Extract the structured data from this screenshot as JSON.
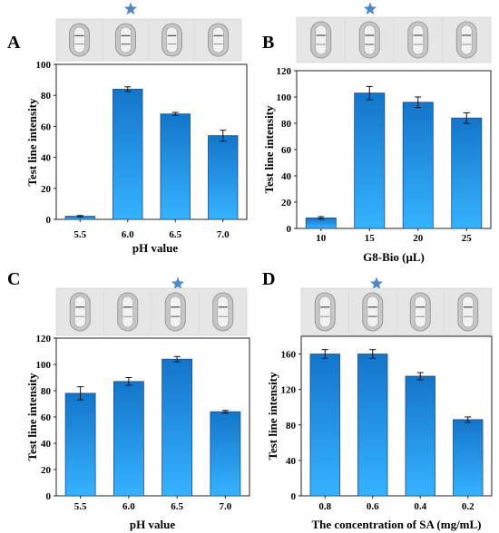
{
  "colors": {
    "bar_top": "#1475c9",
    "bar_bottom": "#35b3ff",
    "star": "#4f86c6",
    "strip_bg": "#e6e6e6"
  },
  "icons": {
    "highlight_marker": "star-icon",
    "test_strip": "test-strip-icon"
  },
  "chart_data": [
    {
      "panel": "A",
      "type": "bar",
      "categories": [
        "5.5",
        "6.0",
        "6.5",
        "7.0"
      ],
      "values": [
        2,
        84,
        68,
        54
      ],
      "errors": [
        0.5,
        1.5,
        1.0,
        3.5
      ],
      "xlabel": "pH value",
      "ylabel": "Test line intensity",
      "ylim": [
        0,
        100
      ],
      "yticks": [
        0,
        20,
        40,
        60,
        80,
        100
      ],
      "highlighted_category": "6.0",
      "strip_count": 4,
      "grid": false
    },
    {
      "panel": "B",
      "type": "bar",
      "categories": [
        "10",
        "15",
        "20",
        "25"
      ],
      "values": [
        8,
        103,
        96,
        84
      ],
      "errors": [
        1,
        5,
        4,
        4
      ],
      "xlabel": "G8-Bio (μL)",
      "ylabel": "Test line intensity",
      "ylim": [
        0,
        120
      ],
      "yticks": [
        0,
        20,
        40,
        60,
        80,
        100,
        120
      ],
      "highlighted_category": "15",
      "strip_count": 4,
      "grid": false
    },
    {
      "panel": "C",
      "type": "bar",
      "categories": [
        "5.5",
        "6.0",
        "6.5",
        "7.0"
      ],
      "values": [
        78,
        87,
        104,
        64
      ],
      "errors": [
        5,
        3,
        2,
        1
      ],
      "xlabel": "pH value",
      "ylabel": "Test line intensity",
      "ylim": [
        0,
        120
      ],
      "yticks": [
        0,
        20,
        40,
        60,
        80,
        100,
        120
      ],
      "highlighted_category": "6.5",
      "strip_count": 4,
      "grid": false
    },
    {
      "panel": "D",
      "type": "bar",
      "categories": [
        "0.8",
        "0.6",
        "0.4",
        "0.2"
      ],
      "values": [
        160,
        160,
        135,
        86
      ],
      "errors": [
        5,
        5,
        4,
        3
      ],
      "xlabel": "The concentration of SA (mg/mL)",
      "ylabel": "Test line intensity",
      "ylim": [
        0,
        180
      ],
      "yticks": [
        0,
        40,
        80,
        120,
        160
      ],
      "highlighted_category": "0.6",
      "strip_count": 4,
      "grid": false
    }
  ]
}
